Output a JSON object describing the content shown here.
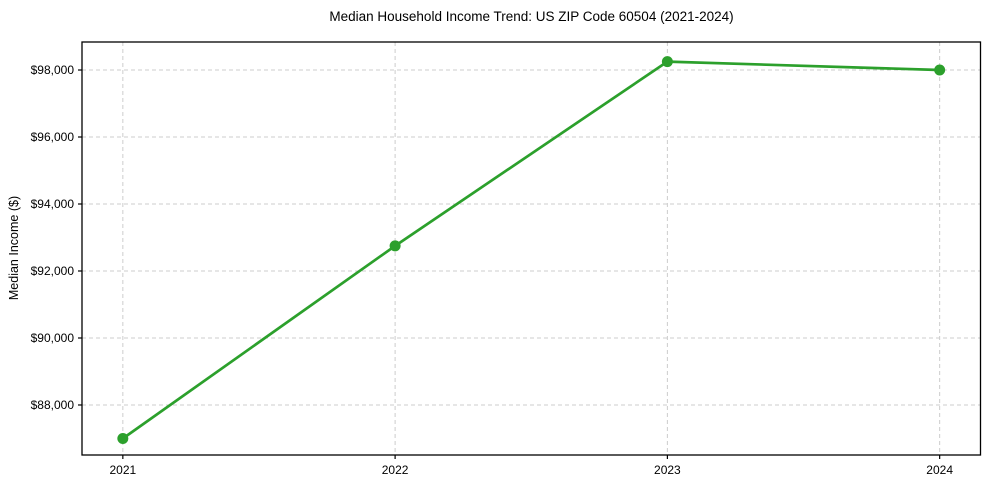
{
  "figure": {
    "title": "Median Household Income Trend: US ZIP Code 60504 (2021-2024)",
    "ylabel": "Median Income ($)"
  },
  "chart_data": {
    "type": "line",
    "title": "Median Household Income Trend: US ZIP Code 60504 (2021-2024)",
    "xlabel": "",
    "ylabel": "Median Income ($)",
    "x": [
      2021,
      2022,
      2023,
      2024
    ],
    "x_tick_labels": [
      "2021",
      "2022",
      "2023",
      "2024"
    ],
    "series": [
      {
        "name": "Median Household Income",
        "values": [
          87000,
          92750,
          98250,
          98000
        ],
        "color": "#2ca02c",
        "marker": "circle"
      }
    ],
    "yticks": [
      88000,
      90000,
      92000,
      94000,
      96000,
      98000
    ],
    "ytick_labels": [
      "$88,000",
      "$90,000",
      "$92,000",
      "$94,000",
      "$96,000",
      "$98,000"
    ],
    "xlim": [
      2020.85,
      2024.15
    ],
    "ylim": [
      86507,
      98836
    ],
    "grid": true,
    "grid_style": "dashed",
    "legend_position": "none",
    "colors": {
      "line": "#2ca02c",
      "grid": "#cccccc",
      "spine": "#000000",
      "background": "#ffffff",
      "text": "#000000"
    }
  }
}
